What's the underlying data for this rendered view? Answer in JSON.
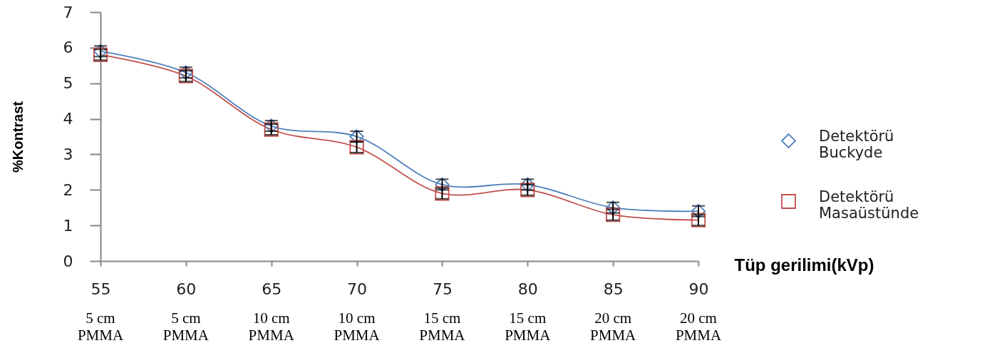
{
  "chart_data": {
    "type": "line",
    "xlabel": "Tüp gerilimi(kVp)",
    "ylabel": "%Kontrast",
    "categories": [
      "55\n5 cm\nPMMA",
      "60\n5 cm\nPMMA",
      "65\n10 cm\nPMMA",
      "70\n10 cm\nPMMA",
      "75\n15 cm\nPMMA",
      "80\n15 cm\nPMMA",
      "85\n20 cm\nPMMA",
      "90\n20 cm\nPMMA"
    ],
    "ylim": [
      0,
      7
    ],
    "yticks": [
      0,
      1,
      2,
      3,
      4,
      5,
      6,
      7
    ],
    "legend": "right",
    "line_style": "solid",
    "series": [
      {
        "name": "Detektörü Buckyde",
        "color": "#4f81bd",
        "marker": "diamond",
        "values": [
          5.9,
          5.3,
          3.8,
          3.5,
          2.15,
          2.15,
          1.5,
          1.4
        ],
        "errors": [
          0.15,
          0.15,
          0.15,
          0.15,
          0.15,
          0.15,
          0.15,
          0.15
        ]
      },
      {
        "name": "Detektörü Masaüstünde",
        "color": "#c0504d",
        "marker": "square",
        "values": [
          5.8,
          5.2,
          3.7,
          3.2,
          1.9,
          2.0,
          1.3,
          1.15
        ],
        "errors": [
          0.15,
          0.15,
          0.15,
          0.15,
          0.15,
          0.15,
          0.15,
          0.15
        ]
      }
    ]
  }
}
